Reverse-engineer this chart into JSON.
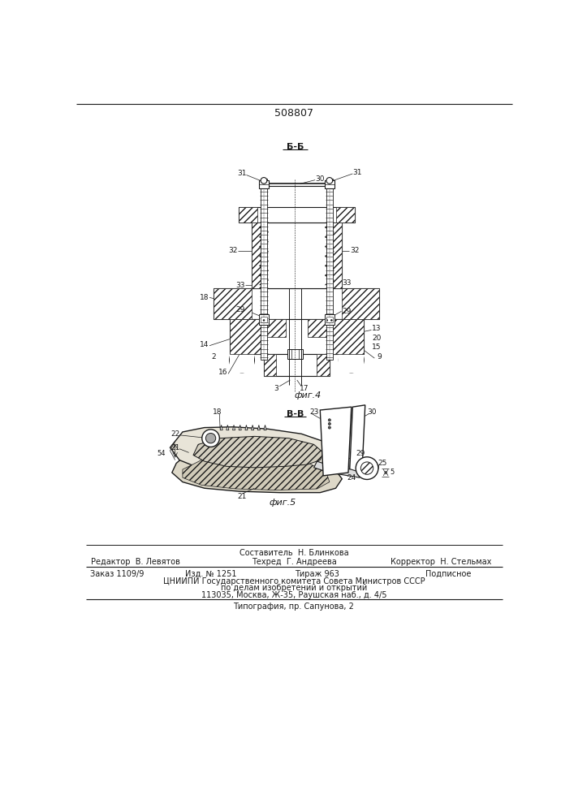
{
  "patent_number": "508807",
  "fig4_label": "Б-Б",
  "fig5_label": "В-В",
  "fig4_caption": "фиг.4",
  "fig5_caption": "фиг.5",
  "footer_line1": "Составитель  Н. Блинкова",
  "footer_line2_left": "Редактор  В. Левятов",
  "footer_line2_mid": "Техред  Г. Андреева",
  "footer_line2_right": "Корректор  Н. Стельмах",
  "footer_line3_left": "Заказ 1109/9",
  "footer_line3_mid1": "Изд. № 1251",
  "footer_line3_mid2": "Тираж 963",
  "footer_line3_right": "Подписное",
  "footer_line4": "ЦНИИПИ Государственного комитета Совета Министров СССР",
  "footer_line5": "по делам изобретений и открытий",
  "footer_line6": "113035, Москва, Ж-35, Раушская наб., д. 4/5",
  "footer_line7": "Типография, пр. Сапунова, 2",
  "bg_color": "#ffffff",
  "line_color": "#1a1a1a",
  "hatch_color": "#333333"
}
